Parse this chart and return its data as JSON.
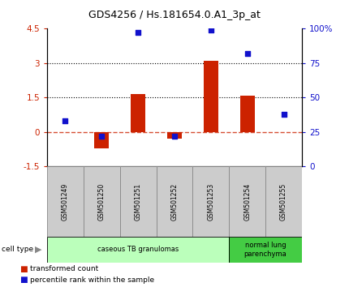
{
  "title": "GDS4256 / Hs.181654.0.A1_3p_at",
  "samples": [
    "GSM501249",
    "GSM501250",
    "GSM501251",
    "GSM501252",
    "GSM501253",
    "GSM501254",
    "GSM501255"
  ],
  "transformed_count": [
    0.0,
    -0.7,
    1.65,
    -0.3,
    3.1,
    1.6,
    0.0
  ],
  "percentile_rank": [
    33,
    22,
    97,
    22,
    99,
    82,
    38
  ],
  "ylim_left": [
    -1.5,
    4.5
  ],
  "ylim_right": [
    0,
    100
  ],
  "yticks_left": [
    -1.5,
    0,
    1.5,
    3,
    4.5
  ],
  "yticks_right": [
    0,
    25,
    50,
    75,
    100
  ],
  "ytick_labels_left": [
    "-1.5",
    "0",
    "1.5",
    "3",
    "4.5"
  ],
  "ytick_labels_right": [
    "0",
    "25",
    "50",
    "75",
    "100%"
  ],
  "hlines": [
    1.5,
    3.0
  ],
  "dashed_hline": 0.0,
  "bar_color": "#cc2200",
  "dot_color": "#1111cc",
  "bar_width": 0.4,
  "groups": [
    {
      "label": "caseous TB granulomas",
      "samples": [
        0,
        1,
        2,
        3,
        4
      ],
      "color": "#bbffbb"
    },
    {
      "label": "normal lung\nparenchyma",
      "samples": [
        5,
        6
      ],
      "color": "#44cc44"
    }
  ],
  "cell_type_label": "cell type",
  "legend_items": [
    {
      "label": "transformed count",
      "color": "#cc2200"
    },
    {
      "label": "percentile rank within the sample",
      "color": "#1111cc"
    }
  ],
  "tick_label_color_left": "#cc2200",
  "tick_label_color_right": "#1111cc",
  "label_area_color": "#cccccc",
  "label_area_border": "#888888"
}
